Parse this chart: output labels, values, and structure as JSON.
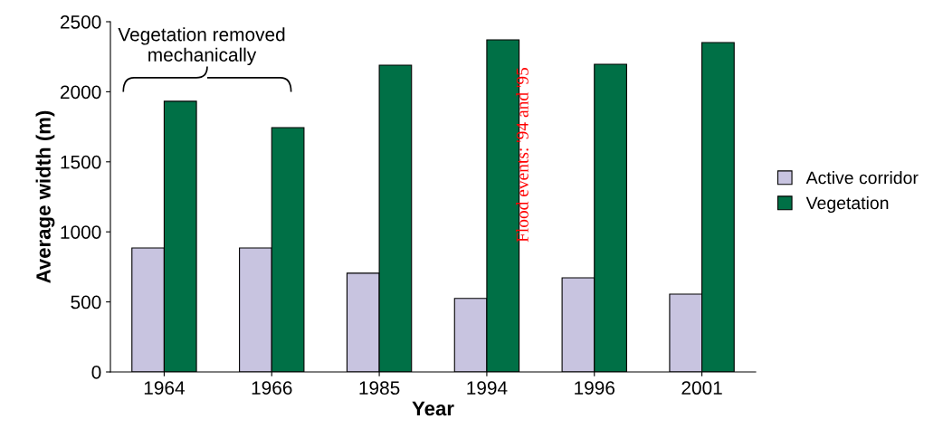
{
  "chart_data": {
    "type": "bar",
    "xlabel": "Year",
    "ylabel": "Average width (m)",
    "categories": [
      "1964",
      "1966",
      "1985",
      "1994",
      "1996",
      "2001"
    ],
    "series": [
      {
        "name": "Active corridor",
        "color": "#c8c4e0",
        "values": [
          885,
          885,
          705,
          525,
          672,
          556
        ]
      },
      {
        "name": "Vegetation",
        "color": "#007046",
        "values": [
          1932,
          1744,
          2190,
          2371,
          2196,
          2351
        ]
      }
    ],
    "ylim": [
      0,
      2500
    ],
    "yticks": [
      0,
      500,
      1000,
      1500,
      2000,
      2500
    ],
    "grid": false,
    "legend": "right",
    "annotations": [
      "Vegetation removed mechanically",
      {
        "text": "Flood events: '94 and '95",
        "x": "1994",
        "y": 1550
      }
    ]
  }
}
